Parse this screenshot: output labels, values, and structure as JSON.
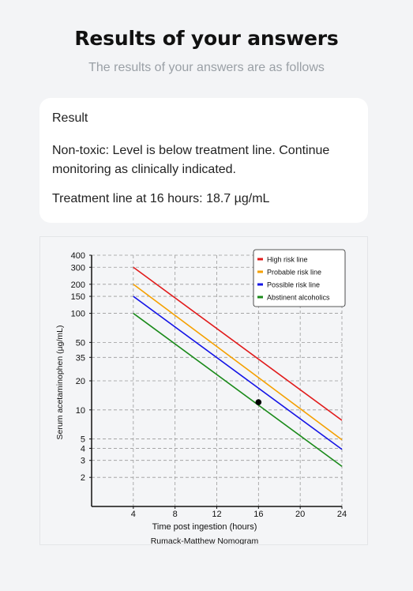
{
  "header": {
    "title": "Results of your answers",
    "subtitle": "The results of your answers are as follows"
  },
  "result": {
    "heading": "Result",
    "message": "Non-toxic: Level is below treatment line. Continue monitoring as clinically indicated.",
    "treatment_line": "Treatment line at 16 hours: 18.7 µg/mL"
  },
  "chart_data": {
    "type": "line",
    "title": "",
    "caption": "Rumack-Matthew Nomogram",
    "xlabel": "Time post ingestion (hours)",
    "ylabel": "Serum acetaminophen (µg/mL)",
    "xlim": [
      0,
      24
    ],
    "ylim": [
      1,
      400
    ],
    "yscale": "log",
    "grid": true,
    "legend_position": "top-right",
    "x_ticks": [
      4,
      8,
      12,
      16,
      20,
      24
    ],
    "y_ticks": [
      2,
      3,
      4,
      5,
      10,
      20,
      35,
      50,
      100,
      150,
      200,
      300,
      400
    ],
    "series": [
      {
        "name": "High risk line",
        "color": "#e11b1b",
        "x": [
          4,
          24
        ],
        "y": [
          300,
          7.8
        ]
      },
      {
        "name": "Probable risk line",
        "color": "#f5a000",
        "x": [
          4,
          24
        ],
        "y": [
          200,
          4.9
        ]
      },
      {
        "name": "Possible risk line",
        "color": "#1414e6",
        "x": [
          4,
          24
        ],
        "y": [
          150,
          3.9
        ]
      },
      {
        "name": "Abstinent alcoholics",
        "color": "#1a8a1a",
        "x": [
          4,
          24
        ],
        "y": [
          100,
          2.6
        ]
      }
    ],
    "points": [
      {
        "x": 16,
        "y": 12,
        "color": "#000000"
      }
    ]
  }
}
